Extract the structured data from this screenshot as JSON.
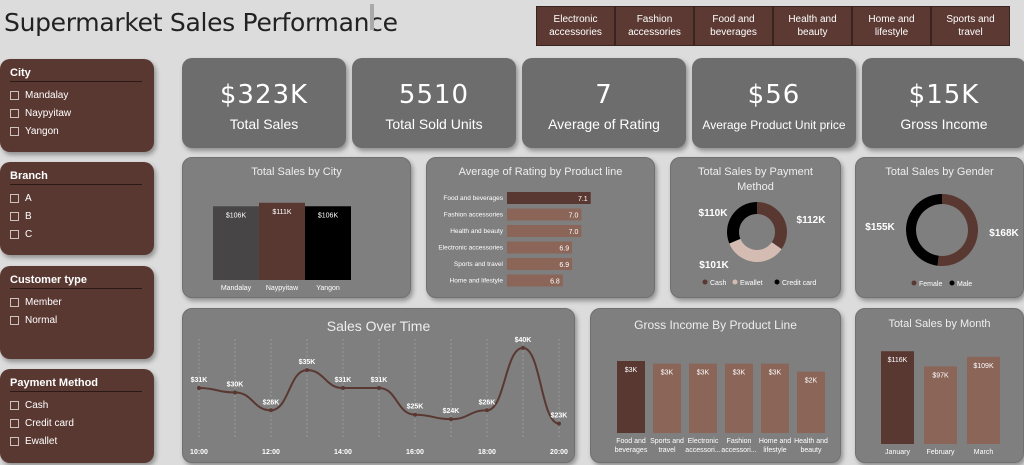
{
  "header": {
    "title": "Supermarket Sales Performance"
  },
  "tabs": [
    "Electronic accessories",
    "Fashion accessories",
    "Food and beverages",
    "Health and beauty",
    "Home and lifestyle",
    "Sports and travel"
  ],
  "filters": {
    "city": {
      "title": "City",
      "options": [
        "Mandalay",
        "Naypyitaw",
        "Yangon"
      ]
    },
    "branch": {
      "title": "Branch",
      "options": [
        "A",
        "B",
        "C"
      ]
    },
    "customer": {
      "title": "Customer type",
      "options": [
        "Member",
        "Normal"
      ]
    },
    "payment": {
      "title": "Payment Method",
      "options": [
        "Cash",
        "Credit card",
        "Ewallet"
      ]
    }
  },
  "kpis": [
    {
      "value": "$323K",
      "label": "Total Sales"
    },
    {
      "value": "5510",
      "label": "Total Sold Units"
    },
    {
      "value": "7",
      "label": "Average of Rating"
    },
    {
      "value": "$56",
      "label": "Average Product Unit price"
    },
    {
      "value": "$15K",
      "label": "Gross Income"
    }
  ],
  "colors": {
    "brown": "#5a3832",
    "tan": "#8a6558",
    "dark": "#404040",
    "black": "#000000",
    "panel": "#7f7f7f"
  },
  "chart_data": [
    {
      "id": "city",
      "type": "bar",
      "title": "Total Sales by City",
      "categories": [
        "Mandalay",
        "Naypyitaw",
        "Yangon"
      ],
      "values": [
        106,
        111,
        106
      ],
      "labels": [
        "$106K",
        "$111K",
        "$106K"
      ],
      "colors": [
        "#474545",
        "#5a3832",
        "#000000"
      ]
    },
    {
      "id": "rating",
      "type": "bar",
      "orientation": "horizontal",
      "title": "Average of Rating by Product line",
      "categories": [
        "Food and beverages",
        "Fashion accessories",
        "Health and beauty",
        "Electronic accessories",
        "Sports and travel",
        "Home and lifestyle"
      ],
      "values": [
        7.1,
        7.0,
        7.0,
        6.9,
        6.9,
        6.8
      ],
      "labels": [
        "7.1",
        "7.0",
        "7.0",
        "6.9",
        "6.9",
        "6.8"
      ]
    },
    {
      "id": "payment",
      "type": "pie",
      "title": "Total Sales by Payment Method",
      "categories": [
        "Cash",
        "Ewallet",
        "Credit card"
      ],
      "values": [
        112,
        110,
        101
      ],
      "labels": [
        "$112K",
        "$110K",
        "$101K"
      ],
      "colors": [
        "#5a3832",
        "#d4bcb3",
        "#000000"
      ],
      "legend": [
        "Cash",
        "Ewallet",
        "Credit card"
      ]
    },
    {
      "id": "gender",
      "type": "pie",
      "title": "Total Sales by Gender",
      "categories": [
        "Female",
        "Male"
      ],
      "values": [
        168,
        155
      ],
      "labels": [
        "$168K",
        "$155K"
      ],
      "colors": [
        "#5a3832",
        "#000000"
      ],
      "legend": [
        "Female",
        "Male"
      ]
    },
    {
      "id": "time",
      "type": "line",
      "title": "Sales Over Time",
      "x": [
        "10:00",
        "11:00",
        "12:00",
        "13:00",
        "14:00",
        "15:00",
        "16:00",
        "17:00",
        "18:00",
        "19:00",
        "20:00"
      ],
      "values": [
        31,
        30,
        26,
        35,
        31,
        31,
        25,
        24,
        26,
        40,
        23
      ],
      "labels": [
        "$31K",
        "$30K",
        "$26K",
        "$35K",
        "$31K",
        "$31K",
        "$25K",
        "$24K",
        "$26K",
        "$40K",
        "$23K"
      ],
      "xticks": [
        "10:00",
        "12:00",
        "14:00",
        "16:00",
        "18:00",
        "20:00"
      ]
    },
    {
      "id": "gross",
      "type": "bar",
      "title": "Gross Income By Product Line",
      "categories": [
        "Food and beverages",
        "Sports and travel",
        "Electronic accessori...",
        "Fashion accessori...",
        "Home and lifestyle",
        "Health and beauty"
      ],
      "values": [
        2.7,
        2.6,
        2.6,
        2.6,
        2.6,
        2.3
      ],
      "labels": [
        "$3K",
        "$3K",
        "$3K",
        "$3K",
        "$3K",
        "$2K"
      ]
    },
    {
      "id": "month",
      "type": "bar",
      "title": "Total Sales by Month",
      "categories": [
        "January",
        "February",
        "March"
      ],
      "values": [
        116,
        97,
        109
      ],
      "labels": [
        "$116K",
        "$97K",
        "$109K"
      ],
      "colors": [
        "#5a3832",
        "#8a6558",
        "#8a6558"
      ]
    }
  ]
}
